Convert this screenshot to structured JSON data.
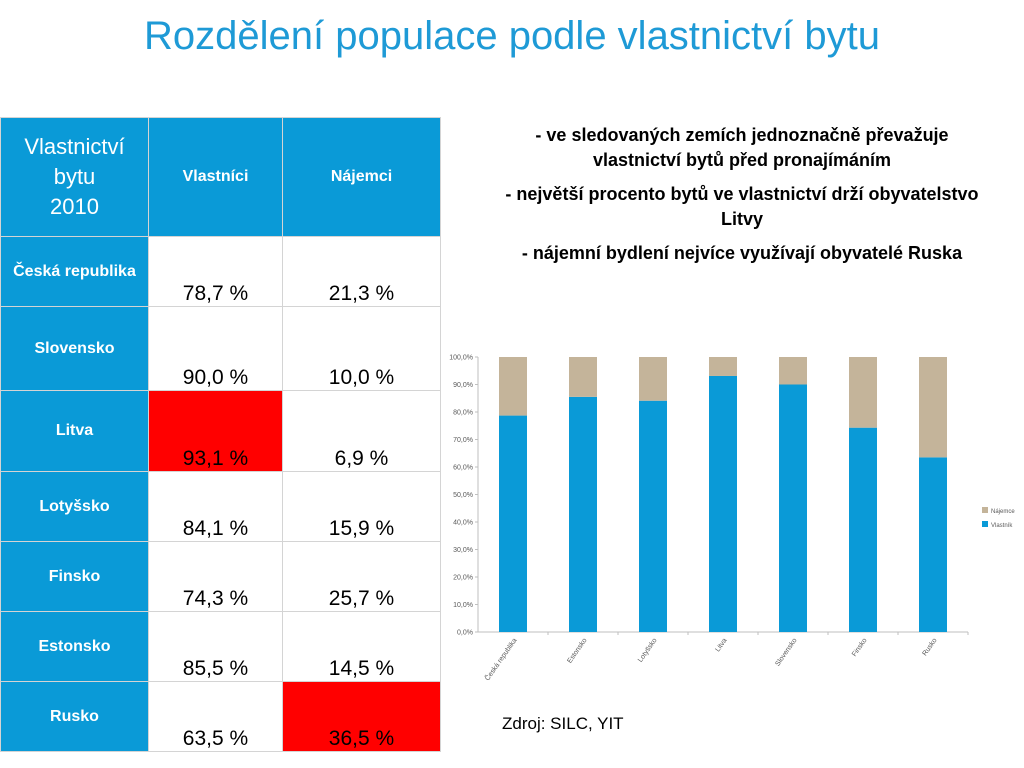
{
  "title": "Rozdělení populace podle vlastnictví bytu",
  "table": {
    "corner": {
      "line1": "Vlastnictví",
      "line2": "bytu",
      "line3": "2010"
    },
    "col_headers": [
      "Vlastníci",
      "Nájemci"
    ],
    "rows": [
      {
        "country": "Česká republika",
        "owners": "78,7 %",
        "tenants": "21,3 %",
        "highlight": ""
      },
      {
        "country": "Slovensko",
        "owners": "90,0 %",
        "tenants": "10,0 %",
        "highlight": ""
      },
      {
        "country": "Litva",
        "owners": "93,1 %",
        "tenants": "6,9 %",
        "highlight": "owners"
      },
      {
        "country": "Lotyšsko",
        "owners": "84,1 %",
        "tenants": "15,9 %",
        "highlight": ""
      },
      {
        "country": "Finsko",
        "owners": "74,3 %",
        "tenants": "25,7 %",
        "highlight": ""
      },
      {
        "country": "Estonsko",
        "owners": "85,5 %",
        "tenants": "14,5 %",
        "highlight": ""
      },
      {
        "country": "Rusko",
        "owners": "63,5 %",
        "tenants": "36,5 %",
        "highlight": "tenants"
      }
    ]
  },
  "bullets": [
    "- ve sledovaných zemích jednoznačně převažuje vlastnictví bytů před pronajímáním",
    "- největší procento bytů ve vlastnictví drží obyvatelstvo Litvy",
    "- nájemní bydlení nejvíce využívají obyvatelé Ruska"
  ],
  "source": "Zdroj: SILC, YIT",
  "colors": {
    "title": "#1e9ad6",
    "header_bg": "#0a9ad7",
    "highlight": "#ff0000",
    "owners": "#0a9ad7",
    "tenants": "#c4b49a"
  },
  "chart_data": {
    "type": "bar",
    "stacked": true,
    "categories": [
      "Česká republika",
      "Estonsko",
      "Lotyšsko",
      "Litva",
      "Slovensko",
      "Finsko",
      "Rusko"
    ],
    "series": [
      {
        "name": "Vlastník",
        "color": "#0a9ad7",
        "values": [
          78.7,
          85.5,
          84.1,
          93.1,
          90.0,
          74.3,
          63.5
        ]
      },
      {
        "name": "Nájemce",
        "color": "#c4b49a",
        "values": [
          21.3,
          14.5,
          15.9,
          6.9,
          10.0,
          25.7,
          36.5
        ]
      }
    ],
    "y_ticks": [
      "0,0%",
      "10,0%",
      "20,0%",
      "30,0%",
      "40,0%",
      "50,0%",
      "60,0%",
      "70,0%",
      "80,0%",
      "90,0%",
      "100,0%"
    ],
    "ylim": [
      0,
      100
    ],
    "legend_position": "right",
    "grid": false
  }
}
